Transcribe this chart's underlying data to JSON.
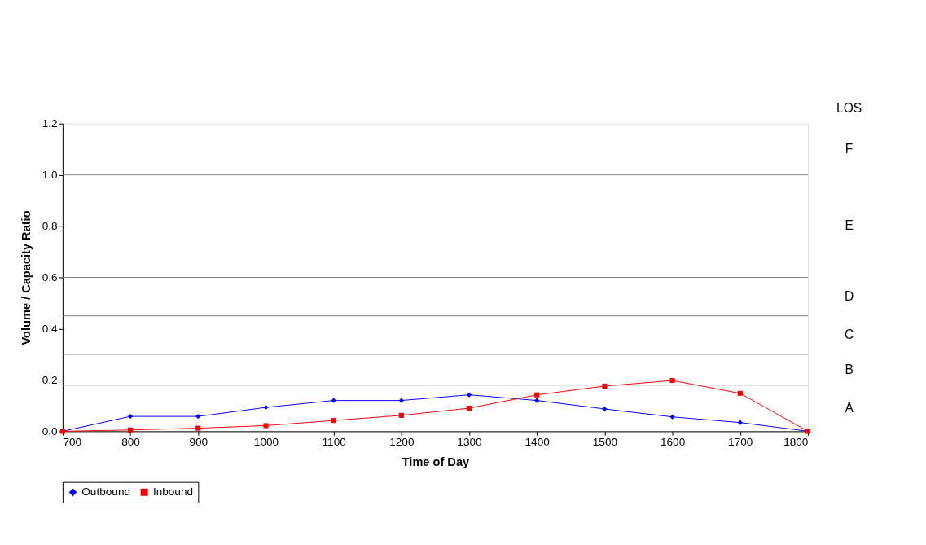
{
  "chart_data": {
    "type": "line",
    "xlabel": "Time of Day",
    "ylabel": "Volume / Capacity Ratio",
    "x": [
      700,
      800,
      900,
      1000,
      1100,
      1200,
      1300,
      1400,
      1500,
      1600,
      1700,
      1800
    ],
    "series": [
      {
        "name": "Outbound",
        "color": "#0000ff",
        "marker": "diamond",
        "values": [
          0,
          0.058,
          0.058,
          0.093,
          0.12,
          0.12,
          0.142,
          0.12,
          0.087,
          0.056,
          0.034,
          0
        ]
      },
      {
        "name": "Inbound",
        "color": "#ff0000",
        "marker": "square",
        "values": [
          0,
          0.005,
          0.012,
          0.022,
          0.042,
          0.062,
          0.09,
          0.142,
          0.176,
          0.198,
          0.148,
          0
        ]
      }
    ],
    "xlim": [
      700,
      1800
    ],
    "xticks": [
      700,
      800,
      900,
      1000,
      1100,
      1200,
      1300,
      1400,
      1500,
      1600,
      1700,
      1800
    ],
    "ylim": [
      0,
      1.2
    ],
    "yticks": [
      {
        "value": 0,
        "label": "0.0"
      },
      0.2,
      0.4,
      0.6,
      0.8,
      {
        "value": 1,
        "label": "1.0"
      },
      1.2
    ],
    "ref_lines": [
      {
        "axis": "y",
        "value": 0.18,
        "color": "#808080"
      },
      {
        "axis": "y",
        "value": 0.3,
        "color": "#808080"
      },
      {
        "axis": "y",
        "value": 0.45,
        "color": "#808080"
      },
      {
        "axis": "y",
        "value": 0.6,
        "color": "#808080"
      },
      {
        "axis": "y",
        "value": 1.0,
        "color": "#808080"
      }
    ],
    "annotations": [
      "LOS",
      "A",
      "B",
      "C",
      "D",
      "E",
      "F"
    ],
    "legend": "bottom",
    "grid": false
  }
}
